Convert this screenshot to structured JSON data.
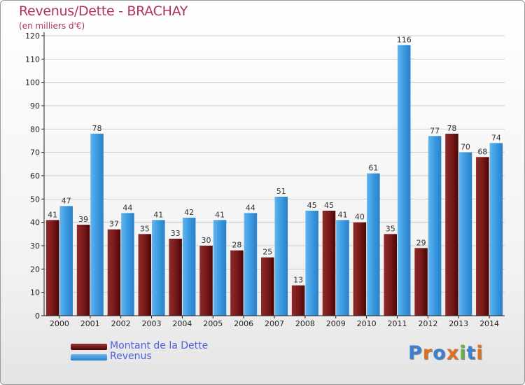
{
  "title": "Revenus/Dette - BRACHAY",
  "subtitle": "(en milliers d'€)",
  "legend": [
    {
      "label": "Montant de la Dette",
      "color": "#7a1a1a"
    },
    {
      "label": "Revenus",
      "color": "#3a9ae0"
    }
  ],
  "logo": {
    "text": "Proxiti",
    "colors": [
      "#3a7fd0",
      "#e07020",
      "#3a7fd0",
      "#e07020",
      "#6ab04c",
      "#3a7fd0",
      "#e07020"
    ]
  },
  "colors": {
    "dette": "#7a1a1a",
    "revenus": "#3a9ae0",
    "grid": "#cccccc",
    "axis": "#222222"
  },
  "chart_data": {
    "type": "bar",
    "title": "Revenus/Dette - BRACHAY",
    "ylabel": "(en milliers d'€)",
    "xlabel": "",
    "ylim": [
      0,
      120
    ],
    "yticks": [
      0,
      10,
      20,
      30,
      40,
      50,
      60,
      70,
      80,
      90,
      100,
      110,
      120
    ],
    "grid": true,
    "legend_position": "bottom-left",
    "categories": [
      "2000",
      "2001",
      "2002",
      "2003",
      "2004",
      "2005",
      "2006",
      "2007",
      "2008",
      "2009",
      "2010",
      "2011",
      "2012",
      "2013",
      "2014"
    ],
    "series": [
      {
        "name": "Montant de la Dette",
        "values": [
          41,
          39,
          37,
          35,
          33,
          30,
          28,
          25,
          13,
          45,
          40,
          35,
          29,
          78,
          68
        ]
      },
      {
        "name": "Revenus",
        "values": [
          47,
          78,
          44,
          41,
          42,
          41,
          44,
          51,
          45,
          41,
          61,
          116,
          77,
          70,
          74
        ]
      }
    ]
  }
}
